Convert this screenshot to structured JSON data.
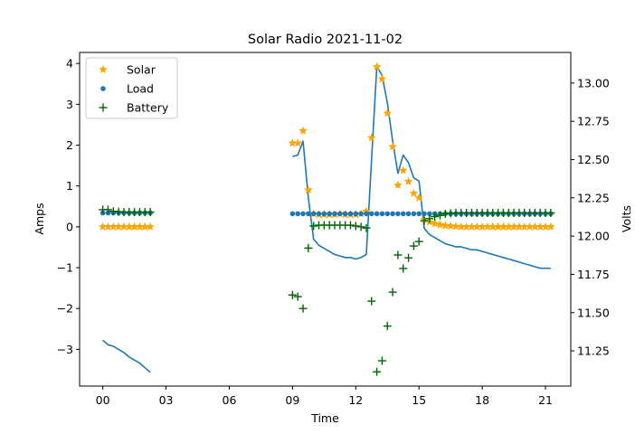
{
  "chart_data": {
    "type": "scatter",
    "title": "Solar Radio 2021-11-02",
    "xlabel": "Time",
    "ylabel": "Amps",
    "y2label": "Volts",
    "xlim": [
      -1.1,
      22.2
    ],
    "ylim": [
      -3.9,
      4.27
    ],
    "y2lim": [
      11.02,
      13.2
    ],
    "x_ticks": [
      0,
      3,
      6,
      9,
      12,
      15,
      18,
      21
    ],
    "x_tick_labels": [
      "00",
      "03",
      "06",
      "09",
      "12",
      "15",
      "18",
      "21"
    ],
    "y_ticks": [
      -3,
      -2,
      -1,
      0,
      1,
      2,
      3,
      4
    ],
    "y_tick_labels": [
      "−3",
      "−2",
      "−1",
      "0",
      "1",
      "2",
      "3",
      "4"
    ],
    "y2_ticks": [
      11.25,
      11.5,
      11.75,
      12.0,
      12.25,
      12.5,
      12.75,
      13.0
    ],
    "y2_tick_labels": [
      "11.25",
      "11.50",
      "11.75",
      "12.00",
      "12.25",
      "12.50",
      "12.75",
      "13.00"
    ],
    "grid": false,
    "legend": {
      "position": "top-left",
      "entries": [
        {
          "label": "Solar",
          "marker": "star",
          "color": "#ffa500"
        },
        {
          "label": "Load",
          "marker": "dot",
          "color": "#1f77b4"
        },
        {
          "label": "Battery",
          "marker": "plus",
          "color": "#006400"
        }
      ]
    },
    "series": [
      {
        "name": "Solar",
        "axis": "left",
        "marker": "star",
        "color": "#ffa500",
        "segments": [
          {
            "x": [
              0,
              0.25,
              0.5,
              0.75,
              1.0,
              1.25,
              1.5,
              1.75,
              2.0,
              2.25
            ],
            "y": [
              0,
              0,
              0,
              0,
              0,
              0,
              0,
              0,
              0,
              0
            ]
          },
          {
            "x": [
              9.0,
              9.25,
              9.5,
              9.75,
              10.0,
              10.25,
              10.5,
              10.75,
              11.0,
              11.25,
              11.5,
              11.75,
              12.0,
              12.25,
              12.5,
              12.75,
              13.0,
              13.25,
              13.5,
              13.75,
              14.0,
              14.25,
              14.5,
              14.75,
              15.0,
              15.25,
              15.5,
              15.75,
              16.0,
              16.25,
              16.5,
              16.75,
              17.0,
              17.25,
              17.5,
              17.75,
              18.0,
              18.25,
              18.5,
              18.75,
              19.0,
              19.25,
              19.5,
              19.75,
              20.0,
              20.25,
              20.5,
              20.75,
              21.0,
              21.25
            ],
            "y": [
              2.05,
              2.05,
              2.35,
              0.9,
              0.32,
              0.3,
              0.3,
              0.3,
              0.3,
              0.32,
              0.3,
              0.3,
              0.3,
              0.32,
              0.38,
              2.18,
              3.92,
              3.62,
              2.78,
              1.96,
              1.02,
              1.38,
              1.11,
              0.82,
              0.71,
              0.18,
              0.12,
              0.08,
              0.05,
              0.03,
              0.02,
              0.01,
              0,
              0,
              0,
              0,
              0,
              0,
              0,
              0,
              0,
              0,
              0,
              0,
              0,
              0,
              0,
              0,
              0,
              0
            ]
          }
        ]
      },
      {
        "name": "Load",
        "axis": "left",
        "marker": "dot",
        "color": "#1f77b4",
        "segments": [
          {
            "x": [
              0,
              0.25,
              0.5,
              0.75,
              1.0,
              1.25,
              1.5,
              1.75,
              2.0,
              2.25
            ],
            "y": [
              0.34,
              0.34,
              0.34,
              0.34,
              0.34,
              0.34,
              0.34,
              0.34,
              0.34,
              0.34
            ]
          },
          {
            "x": [
              9.0,
              9.25,
              9.5,
              9.75,
              10.0,
              10.25,
              10.5,
              10.75,
              11.0,
              11.25,
              11.5,
              11.75,
              12.0,
              12.25,
              12.5,
              12.75,
              13.0,
              13.25,
              13.5,
              13.75,
              14.0,
              14.25,
              14.5,
              14.75,
              15.0,
              15.25,
              15.5,
              15.75,
              16.0,
              16.25,
              16.5,
              16.75,
              17.0,
              17.25,
              17.5,
              17.75,
              18.0,
              18.25,
              18.5,
              18.75,
              19.0,
              19.25,
              19.5,
              19.75,
              20.0,
              20.25,
              20.5,
              20.75,
              21.0,
              21.25
            ],
            "y": [
              0.32,
              0.32,
              0.32,
              0.32,
              0.32,
              0.32,
              0.32,
              0.32,
              0.32,
              0.32,
              0.32,
              0.32,
              0.32,
              0.32,
              0.32,
              0.32,
              0.32,
              0.32,
              0.32,
              0.32,
              0.32,
              0.32,
              0.32,
              0.32,
              0.32,
              0.32,
              0.32,
              0.32,
              0.32,
              0.32,
              0.32,
              0.32,
              0.32,
              0.32,
              0.32,
              0.32,
              0.32,
              0.32,
              0.32,
              0.32,
              0.32,
              0.32,
              0.32,
              0.32,
              0.32,
              0.32,
              0.32,
              0.32,
              0.32,
              0.32
            ]
          }
        ]
      },
      {
        "name": "Battery",
        "axis": "left",
        "marker": "plus",
        "color": "#006400",
        "segments": [
          {
            "x": [
              0,
              0.25,
              0.5,
              0.75,
              1.0,
              1.25,
              1.5,
              1.75,
              2.0,
              2.25
            ],
            "y": [
              0.42,
              0.42,
              0.38,
              0.37,
              0.36,
              0.36,
              0.36,
              0.36,
              0.36,
              0.36
            ]
          },
          {
            "x": [
              9.0,
              9.25,
              9.5,
              9.75,
              10.0,
              10.25,
              10.5,
              10.75,
              11.0,
              11.25,
              11.5,
              11.75,
              12.0,
              12.25,
              12.5,
              12.75,
              13.0,
              13.25,
              13.5,
              13.75,
              14.0,
              14.25,
              14.5,
              14.75,
              15.0,
              15.25,
              15.5,
              15.75,
              16.0,
              16.25,
              16.5,
              16.75,
              17.0,
              17.25,
              17.5,
              17.75,
              18.0,
              18.25,
              18.5,
              18.75,
              19.0,
              19.25,
              19.5,
              19.75,
              20.0,
              20.25,
              20.5,
              20.75,
              21.0,
              21.25
            ],
            "y": [
              -1.67,
              -1.71,
              -2.0,
              -0.52,
              0.02,
              0.04,
              0.04,
              0.04,
              0.04,
              0.04,
              0.04,
              0.04,
              0.02,
              0.0,
              -0.03,
              -1.82,
              -3.55,
              -3.28,
              -2.43,
              -1.6,
              -0.69,
              -1.02,
              -0.76,
              -0.47,
              -0.36,
              0.15,
              0.2,
              0.25,
              0.28,
              0.32,
              0.33,
              0.34,
              0.34,
              0.34,
              0.34,
              0.34,
              0.34,
              0.34,
              0.34,
              0.34,
              0.34,
              0.34,
              0.34,
              0.34,
              0.34,
              0.34,
              0.34,
              0.34,
              0.34,
              0.34
            ]
          }
        ]
      },
      {
        "name": "Volts",
        "axis": "right",
        "marker": "line",
        "color": "#1f77b4",
        "segments": [
          {
            "x": [
              0,
              0.25,
              0.5,
              0.75,
              1.0,
              1.25,
              1.5,
              1.75,
              2.0,
              2.25
            ],
            "y": [
              11.32,
              11.29,
              11.28,
              11.26,
              11.24,
              11.21,
              11.19,
              11.17,
              11.14,
              11.11
            ]
          },
          {
            "x": [
              9.0,
              9.25,
              9.5,
              9.75,
              10.0,
              10.25,
              10.5,
              10.75,
              11.0,
              11.25,
              11.5,
              11.75,
              12.0,
              12.25,
              12.5,
              12.75,
              13.0,
              13.25,
              13.5,
              13.75,
              14.0,
              14.25,
              14.5,
              14.75,
              15.0,
              15.25,
              15.5,
              15.75,
              16.0,
              16.25,
              16.5,
              16.75,
              17.0,
              17.25,
              17.5,
              17.75,
              18.0,
              18.25,
              18.5,
              18.75,
              19.0,
              19.25,
              19.5,
              19.75,
              20.0,
              20.25,
              20.5,
              20.75,
              21.0,
              21.25
            ],
            "y": [
              12.52,
              12.53,
              12.62,
              12.25,
              11.98,
              11.94,
              11.92,
              11.9,
              11.88,
              11.87,
              11.86,
              11.86,
              11.85,
              11.86,
              11.88,
              12.5,
              13.11,
              13.05,
              12.87,
              12.62,
              12.41,
              12.53,
              12.48,
              12.38,
              12.36,
              12.05,
              12.01,
              11.99,
              11.97,
              11.95,
              11.94,
              11.93,
              11.93,
              11.92,
              11.91,
              11.91,
              11.9,
              11.89,
              11.88,
              11.87,
              11.86,
              11.85,
              11.84,
              11.83,
              11.82,
              11.81,
              11.8,
              11.79,
              11.79,
              11.79
            ]
          }
        ]
      }
    ]
  }
}
